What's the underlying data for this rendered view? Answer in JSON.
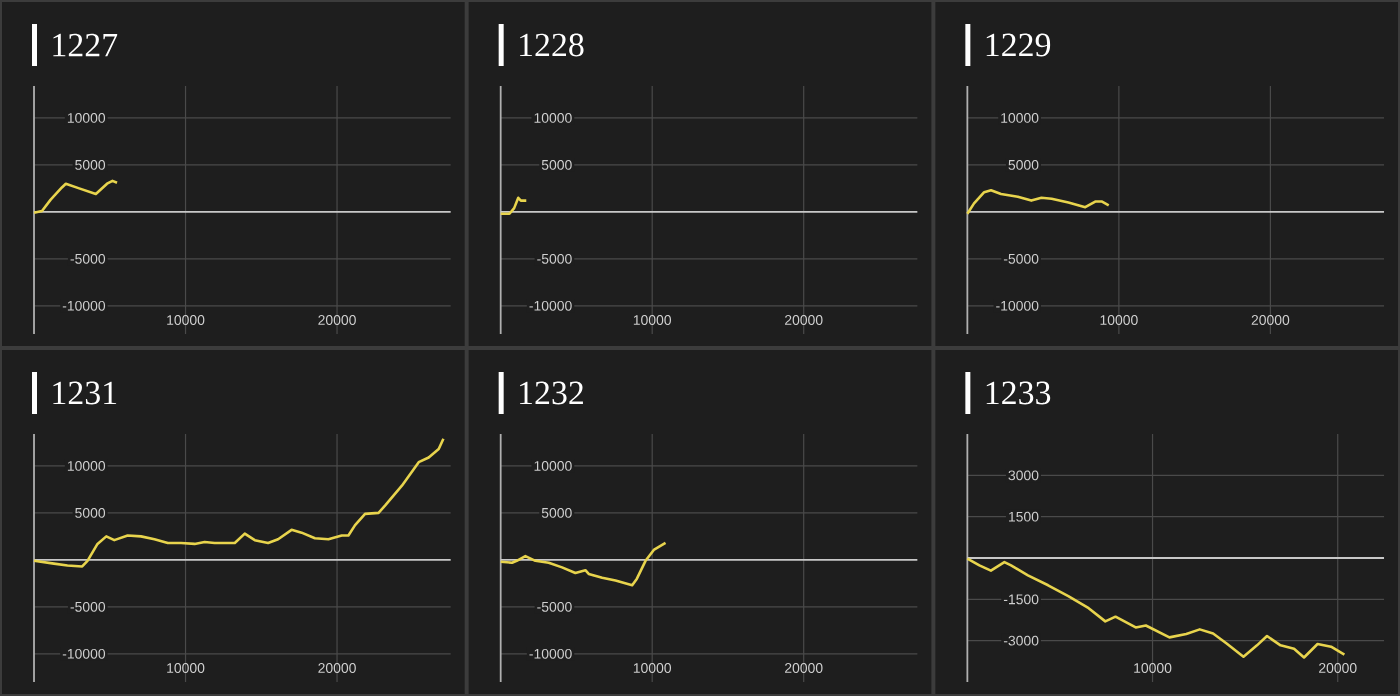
{
  "chart_data": [
    {
      "type": "line",
      "title": "1227",
      "color": "#e8d44d",
      "grid": true,
      "x": [
        0,
        526,
        1100,
        1840,
        2100,
        2980,
        4080,
        4820,
        5180,
        5480
      ],
      "values": [
        -100,
        100,
        1300,
        2600,
        3000,
        2500,
        1900,
        3000,
        3300,
        3100
      ],
      "xlim": [
        0,
        27500
      ],
      "ylim": [
        -13000,
        13400
      ],
      "xticks": [
        10000,
        20000
      ],
      "yticks": [
        -10000,
        -5000,
        5000,
        10000
      ],
      "ref_lines": [
        {
          "axis": "y",
          "value": 0,
          "color": "#c8c8c8"
        }
      ]
    },
    {
      "type": "line",
      "title": "1228",
      "color": "#e8d44d",
      "grid": true,
      "x": [
        0,
        580,
        890,
        1160,
        1330,
        1690
      ],
      "values": [
        -200,
        -200,
        400,
        1500,
        1200,
        1200
      ],
      "xlim": [
        0,
        27500
      ],
      "ylim": [
        -13000,
        13400
      ],
      "xticks": [
        10000,
        20000
      ],
      "yticks": [
        -10000,
        -5000,
        5000,
        10000
      ],
      "ref_lines": [
        {
          "axis": "y",
          "value": 0,
          "color": "#c8c8c8"
        }
      ]
    },
    {
      "type": "line",
      "title": "1229",
      "color": "#e8d44d",
      "grid": true,
      "x": [
        0,
        440,
        1110,
        1560,
        2220,
        3330,
        4220,
        4890,
        5560,
        6670,
        7780,
        8440,
        8890,
        9330
      ],
      "values": [
        -200,
        900,
        2100,
        2300,
        1900,
        1600,
        1200,
        1500,
        1400,
        1000,
        500,
        1100,
        1100,
        700
      ],
      "xlim": [
        0,
        27500
      ],
      "ylim": [
        -13000,
        13400
      ],
      "xticks": [
        10000,
        20000
      ],
      "yticks": [
        -10000,
        -5000,
        5000,
        10000
      ],
      "ref_lines": [
        {
          "axis": "y",
          "value": 0,
          "color": "#c8c8c8"
        }
      ]
    },
    {
      "type": "line",
      "title": "1231",
      "color": "#e8d44d",
      "grid": true,
      "x": [
        0,
        1320,
        2210,
        3180,
        3530,
        4190,
        4770,
        5300,
        6180,
        7060,
        7950,
        8830,
        9710,
        10600,
        11260,
        11920,
        13250,
        13910,
        14570,
        15450,
        16110,
        17000,
        17660,
        18540,
        19430,
        20310,
        20750,
        21190,
        21850,
        22740,
        23180,
        24280,
        25390,
        26050,
        26710,
        27020
      ],
      "values": [
        -100,
        -400,
        -600,
        -700,
        -100,
        1700,
        2500,
        2100,
        2600,
        2500,
        2200,
        1800,
        1800,
        1700,
        1900,
        1800,
        1800,
        2800,
        2100,
        1800,
        2200,
        3200,
        2900,
        2300,
        2200,
        2600,
        2600,
        3700,
        4900,
        5000,
        5800,
        7900,
        10400,
        10900,
        11800,
        12900
      ],
      "xlim": [
        0,
        27500
      ],
      "ylim": [
        -13000,
        13400
      ],
      "xticks": [
        10000,
        20000
      ],
      "yticks": [
        -10000,
        -5000,
        5000,
        10000
      ],
      "ref_lines": [
        {
          "axis": "y",
          "value": 0,
          "color": "#c8c8c8"
        }
      ]
    },
    {
      "type": "line",
      "title": "1232",
      "color": "#e8d44d",
      "grid": true,
      "x": [
        0,
        750,
        1060,
        1630,
        2290,
        3170,
        4050,
        4930,
        5590,
        5810,
        6700,
        7580,
        8680,
        8990,
        9560,
        10130,
        10880
      ],
      "values": [
        -200,
        -300,
        -100,
        400,
        -100,
        -300,
        -800,
        -1400,
        -1100,
        -1500,
        -1900,
        -2200,
        -2700,
        -2000,
        -100,
        1100,
        1800
      ],
      "xlim": [
        0,
        27500
      ],
      "ylim": [
        -13000,
        13400
      ],
      "xticks": [
        10000,
        20000
      ],
      "yticks": [
        -10000,
        -5000,
        5000,
        10000
      ],
      "ref_lines": [
        {
          "axis": "y",
          "value": 0,
          "color": "#c8c8c8"
        }
      ]
    },
    {
      "type": "line",
      "title": "1233",
      "color": "#e8d44d",
      "grid": true,
      "x": [
        0,
        650,
        1270,
        2000,
        2360,
        3270,
        4360,
        5450,
        6550,
        7450,
        8000,
        9090,
        9640,
        10910,
        11820,
        12550,
        13270,
        14000,
        14910,
        15640,
        16180,
        16910,
        17640,
        18180,
        18910,
        19640,
        20360
      ],
      "values": [
        -20,
        -270,
        -460,
        -150,
        -270,
        -630,
        -990,
        -1380,
        -1820,
        -2300,
        -2130,
        -2520,
        -2450,
        -2880,
        -2760,
        -2590,
        -2740,
        -3100,
        -3580,
        -3170,
        -2830,
        -3170,
        -3290,
        -3610,
        -3120,
        -3220,
        -3510
      ],
      "xlim": [
        0,
        22500
      ],
      "ylim": [
        -4500,
        4500
      ],
      "xticks": [
        10000,
        20000
      ],
      "yticks": [
        -3000,
        -1500,
        1500,
        3000
      ],
      "ref_lines": [
        {
          "axis": "y",
          "value": 0,
          "color": "#c8c8c8"
        }
      ]
    }
  ]
}
